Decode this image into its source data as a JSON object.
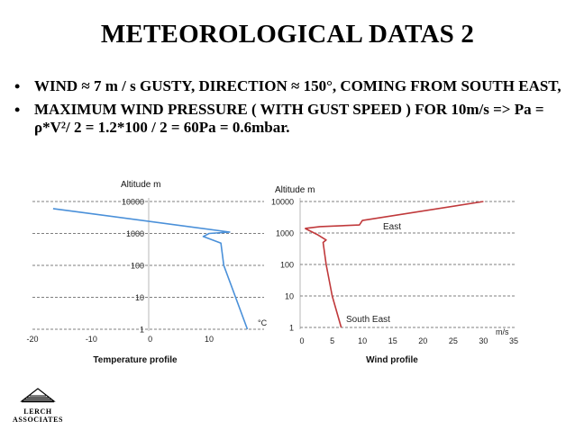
{
  "slide": {
    "title": "METEOROLOGICAL DATAS  2",
    "bullets": [
      "WIND  ≈ 7 m / s  GUSTY, DIRECTION ≈ 150°, COMING FROM  SOUTH EAST,",
      "MAXIMUM WIND PRESSURE ( WITH GUST SPEED ) FOR 10m/s  => Pa = ρ*V²/ 2 = 1.2*100 / 2 = 60Pa = 0.6mbar."
    ]
  },
  "logo": {
    "line1": "LERCH",
    "line2": "ASSOCIATES"
  },
  "colors": {
    "temp_line": "#4a90d9",
    "wind_line": "#c0393b",
    "grid": "#555555"
  },
  "chart_data": [
    {
      "type": "line",
      "title": "Temperature profile",
      "ylabel": "Altitude m",
      "xlabel": "°C",
      "y_scale": "log",
      "xlim": [
        -20,
        20
      ],
      "ylim": [
        1,
        10000
      ],
      "x_ticks": [
        "-20",
        "-10",
        "0",
        "10"
      ],
      "y_ticks": [
        "10000",
        "1000",
        "100",
        "10",
        "1"
      ],
      "series": [
        {
          "name": "Temperature",
          "x": [
            16.5,
            14.5,
            12.5,
            12,
            9,
            10,
            13.5,
            -16.5
          ],
          "y": [
            1,
            10,
            100,
            500,
            800,
            1000,
            1100,
            6000
          ]
        }
      ]
    },
    {
      "type": "line",
      "title": "Wind profile",
      "ylabel": "Altitude m",
      "xlabel": "m/s",
      "y_scale": "log",
      "xlim": [
        0,
        35
      ],
      "ylim": [
        1,
        10000
      ],
      "x_ticks": [
        "0",
        "5",
        "10",
        "15",
        "20",
        "25",
        "30",
        "35"
      ],
      "y_ticks": [
        "10000",
        "1000",
        "100",
        "10",
        "1"
      ],
      "series": [
        {
          "name": "East",
          "x": [
            0.5,
            3,
            9.5,
            10,
            30
          ],
          "y": [
            1400,
            1600,
            1800,
            2500,
            10000
          ]
        },
        {
          "name": "South East",
          "x": [
            6.5,
            5,
            4,
            3.5,
            4,
            2.5,
            0.5
          ],
          "y": [
            1,
            10,
            100,
            500,
            600,
            900,
            1400
          ]
        }
      ]
    }
  ]
}
